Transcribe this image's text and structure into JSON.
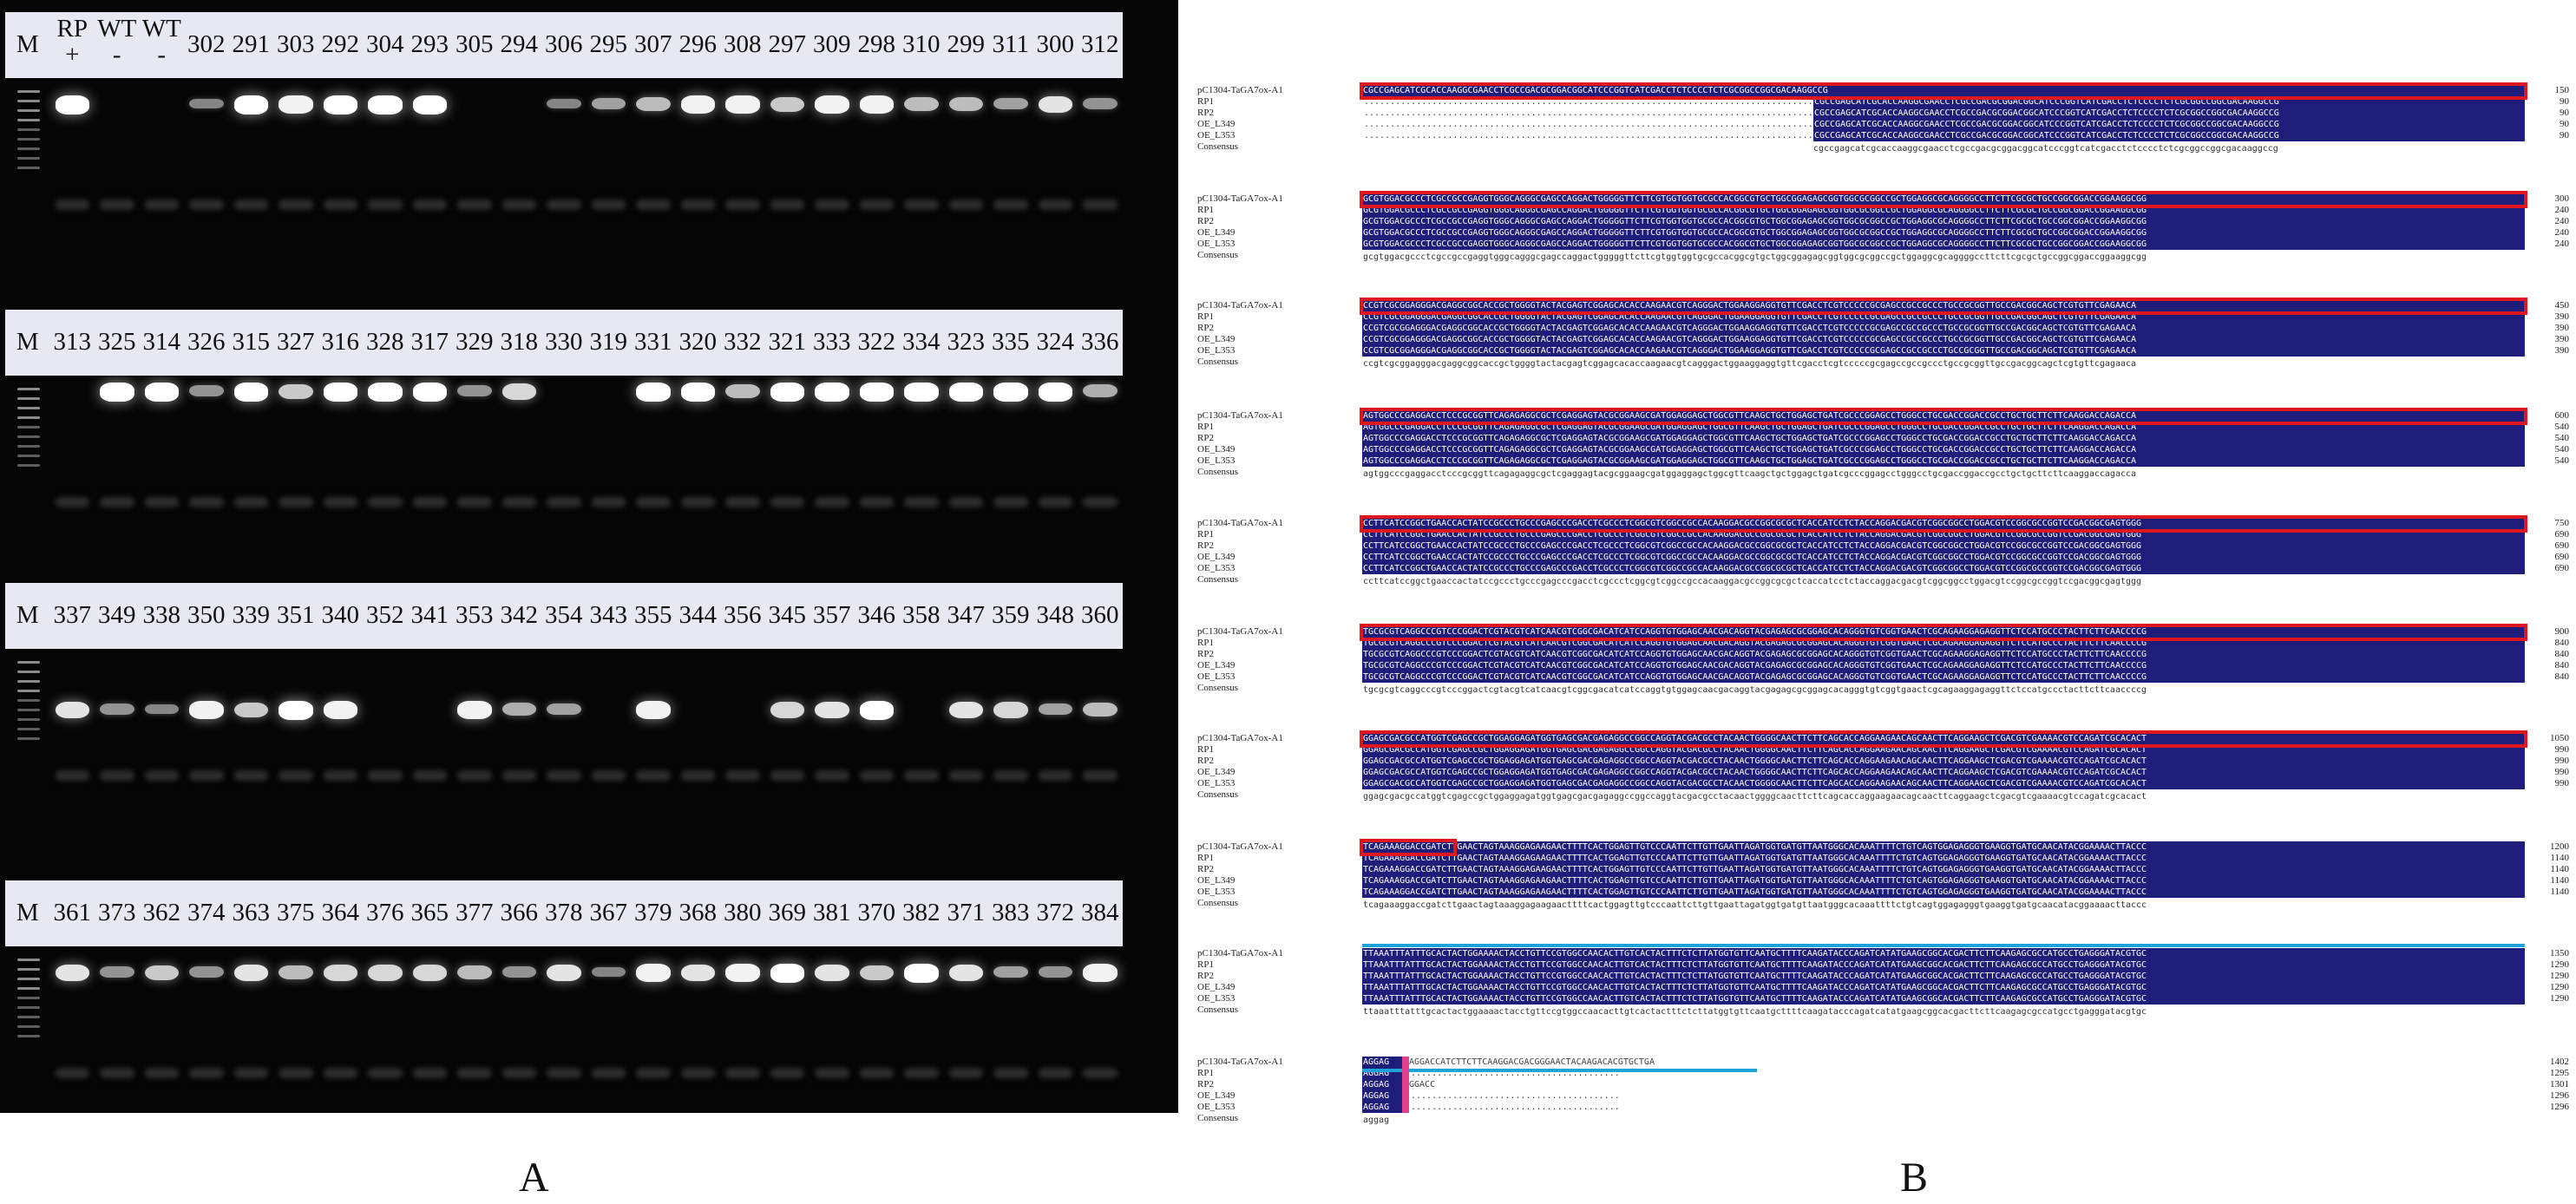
{
  "panelA": {
    "letter": "A",
    "rows": [
      {
        "lanes": [
          "M",
          "RP\n+",
          "WT\n-",
          "WT\n-",
          "302",
          "291",
          "303",
          "292",
          "304",
          "293",
          "305",
          "294",
          "306",
          "295",
          "307",
          "296",
          "308",
          "297",
          "309",
          "298",
          "310",
          "299",
          "311",
          "300",
          "312"
        ]
      },
      {
        "lanes": [
          "M",
          "313",
          "325",
          "314",
          "326",
          "315",
          "327",
          "316",
          "328",
          "317",
          "329",
          "318",
          "330",
          "319",
          "331",
          "320",
          "332",
          "321",
          "333",
          "322",
          "334",
          "323",
          "335",
          "324",
          "336"
        ]
      },
      {
        "lanes": [
          "M",
          "337",
          "349",
          "338",
          "350",
          "339",
          "351",
          "340",
          "352",
          "341",
          "353",
          "342",
          "354",
          "343",
          "355",
          "344",
          "356",
          "345",
          "357",
          "346",
          "358",
          "347",
          "359",
          "348",
          "360"
        ]
      },
      {
        "lanes": [
          "M",
          "361",
          "373",
          "362",
          "374",
          "363",
          "375",
          "364",
          "376",
          "365",
          "377",
          "366",
          "378",
          "367",
          "379",
          "368",
          "380",
          "369",
          "381",
          "370",
          "382",
          "371",
          "383",
          "372",
          "384"
        ]
      }
    ],
    "band_intensity": [
      [
        0,
        1,
        0,
        0,
        0.1,
        1,
        0.9,
        1,
        1,
        1,
        0,
        0,
        0.1,
        0.3,
        0.5,
        0.9,
        0.9,
        0.6,
        0.9,
        0.9,
        0.5,
        0.5,
        0.3,
        0.8,
        0.2
      ],
      [
        0,
        0,
        1,
        1,
        0.2,
        1,
        0.6,
        1,
        1,
        1,
        0.2,
        0.7,
        0,
        0,
        1,
        1,
        0.5,
        1,
        1,
        1,
        1,
        1,
        1,
        1,
        0.4
      ],
      [
        0,
        0.8,
        0.2,
        0.1,
        0.9,
        0.6,
        1,
        0.9,
        0,
        0,
        0.9,
        0.4,
        0.3,
        0,
        0.9,
        0,
        0,
        0.7,
        0.8,
        1,
        0,
        0.8,
        0.7,
        0.3,
        0.5
      ],
      [
        0,
        0.8,
        0.2,
        0.6,
        0.2,
        0.8,
        0.5,
        0.7,
        0.7,
        0.7,
        0.5,
        0.2,
        0.8,
        0.1,
        0.9,
        0.8,
        0.9,
        1,
        0.8,
        0.6,
        1,
        0.8,
        0.3,
        0.2,
        0.9
      ]
    ]
  },
  "panelB": {
    "letter": "B",
    "seq_names": [
      "pC1304-TaGA7ox-A1",
      "RP1",
      "RP2",
      "OE_L349",
      "OE_L353",
      "Consensus"
    ],
    "blocks": [
      {
        "nums": [
          "150",
          "90",
          "90",
          "90",
          "90"
        ],
        "seq": "CGCCGAGCATCGCACCAAGGCGAACCTCGCCGACGCGGACGGCATCCCGGTCATCGACCTCTCCCCTCTCGCGGCCGGCGACAAGGCCG",
        "consensus": "cgccgagcatcgcaccaaggcgaacctcgccgacgcggacggcatcccggtcatcgacctctcccctctcgcggccggcgacaaggccg"
      },
      {
        "nums": [
          "300",
          "240",
          "240",
          "240",
          "240"
        ],
        "seq": "GCGTGGACGCCCTCGCCGCCGAGGTGGGCAGGGCGAGCCAGGACTGGGGGTTCTTCGTGGTGGTGCGCCACGGCGTGCTGGCGGAGAGCGGTGGCGCGGCCGCTGGAGGCGCAGGGGCCTTCTTCGCGCTGCCGGCGGACCGGAAGGCGG",
        "consensus": "gcgtggacgccctcgccgccgaggtgggcagggcgagccaggactgggggttcttcgtggtggtgcgccacggcgtgctggcggagagcggtggcgcggccgctggaggcgcaggggccttcttcgcgctgccggcggaccggaaggcgg"
      },
      {
        "nums": [
          "450",
          "390",
          "390",
          "390",
          "390"
        ],
        "seq": "CCGTCGCGGAGGGACGAGGCGGCACCGCTGGGGTACTACGAGTCGGAGCACACCAAGAACGTCAGGGACTGGAAGGAGGTGTTCGACCTCGTCCCCCGCGAGCCGCCGCCCTGCCGCGGTTGCCGACGGCAGCTCGTGTTCGAGAACA",
        "consensus": "ccgtcgcggagggacgaggcggcaccgctggggtactacgagtcggagcacaccaagaacgtcagggactggaaggaggtgttcgacctcgtcccccgcgagccgccgccctgccgcggttgccgacggcagctcgtgttcgagaaca"
      },
      {
        "nums": [
          "600",
          "540",
          "540",
          "540",
          "540"
        ],
        "seq": "AGTGGCCCGAGGACCTCCCGCGGTTCAGAGAGGCGCTCGAGGAGTACGCGGAAGCGATGGAGGAGCTGGCGTTCAAGCTGCTGGAGCTGATCGCCCGGAGCCTGGGCCTGCGACCGGACCGCCTGCTGCTTCTTCAAGGACCAGACCA",
        "consensus": "agtggcccgaggacctcccgcggttcagagaggcgctcgaggagtacgcggaagcgatggaggagctggcgttcaagctgctggagctgatcgcccggagcctgggcctgcgaccggaccgcctgctgcttcttcaaggaccagacca"
      },
      {
        "nums": [
          "750",
          "690",
          "690",
          "690",
          "690"
        ],
        "seq": "CCTTCATCCGGCTGAACCACTATCCGCCCTGCCCGAGCCCGACCTCGCCCTCGGCGTCGGCCGCCACAAGGACGCCGGCGCGCTCACCATCCTCTACCAGGACGACGTCGGCGGCCTGGACGTCCGGCGCCGGTCCGACGGCGAGTGGG",
        "consensus": "ccttcatccggctgaaccactatccgccctgcccgagcccgacctcgccctcggcgtcggccgccacaaggacgccggcgcgctcaccatcctctaccaggacgacgtcggcggcctggacgtccggcgccggtccgacggcgagtggg"
      },
      {
        "nums": [
          "900",
          "840",
          "840",
          "840",
          "840"
        ],
        "seq": "TGCGCGTCAGGCCCGTCCCGGACTCGTACGTCATCAACGTCGGCGACATCATCCAGGTGTGGAGCAACGACAGGTACGAGAGCGCGGAGCACAGGGTGTCGGTGAACTCGCAGAAGGAGAGGTTCTCCATGCCCTACTTCTTCAACCCCG",
        "consensus": "tgcgcgtcaggcccgtcccggactcgtacgtcatcaacgtcggcgacatcatccaggtgtggagcaacgacaggtacgagagcgcggagcacagggtgtcggtgaactcgcagaaggagaggttctccatgccctacttcttcaaccccg"
      },
      {
        "nums": [
          "1050",
          "990",
          "990",
          "990",
          "990"
        ],
        "seq": "GGAGCGACGCCATGGTCGAGCCGCTGGAGGAGATGGTGAGCGACGAGAGGCCGGCCAGGTACGACGCCTACAACTGGGGCAACTTCTTCAGCACCAGGAAGAACAGCAACTTCAGGAAGCTCGACGTCGAAAACGTCCAGATCGCACACT",
        "consensus": "ggagcgacgccatggtcgagccgctggaggagatggtgagcgacgagaggccggccaggtacgacgcctacaactggggcaacttcttcagcaccaggaagaacagcaacttcaggaagctcgacgtcgaaaacgtccagatcgcacact"
      },
      {
        "nums": [
          "1200",
          "1140",
          "1140",
          "1140",
          "1140"
        ],
        "seq": "TCAGAAAGGACCGATCTTGAACTAGTAAAGGAGAAGAACTTTTCACTGGAGTTGTCCCAATTCTTGTTGAATTAGATGGTGATGTTAATGGGCACAAATTTTCTGTCAGTGGAGAGGGTGAAGGTGATGCAACATACGGAAAACTTACCC",
        "consensus": "tcagaaaggaccgatcttgaactagtaaaggagaagaacttttcactggagttgtcccaattcttgttgaattagatggtgatgttaatgggcacaaattttctgtcagtggagagggtgaaggtgatgcaacatacggaaaacttaccc"
      },
      {
        "nums": [
          "1350",
          "1290",
          "1290",
          "1290",
          "1290"
        ],
        "seq": "TTAAATTTATTTGCACTACTGGAAAACTACCTGTTCCGTGGCCAACACTTGTCACTACTTTCTCTTATGGTGTTCAATGCTTTTCAAGATACCCAGATCATATGAAGCGGCACGACTTCTTCAAGAGCGCCATGCCTGAGGGATACGTGC",
        "consensus": "ttaaatttatttgcactactggaaaactacctgttccgtggccaacacttgtcactactttctcttatggtgttcaatgcttttcaagatacccagatcatatgaagcggcacgacttcttcaagagcgccatgcctgagggatacgtgc"
      },
      {
        "nums": [
          "1402",
          "1295",
          "1301",
          "1296",
          "1296"
        ],
        "seq": "AGGAG",
        "consensus": "aggag",
        "tail_first": "AGGACCATCTTCTTCAAGGACGACGGGAACTACAAGACACGTGCTGA",
        "tail_rp2": "GGACC"
      }
    ]
  },
  "colors": {
    "gel_bg": "#050505",
    "label_strip": "#e8e8f2",
    "seq_bg": "#1e1e7a",
    "highlight_box": "#e0161e",
    "blue_line": "#1fa2d9",
    "pink": "#e0408a"
  }
}
